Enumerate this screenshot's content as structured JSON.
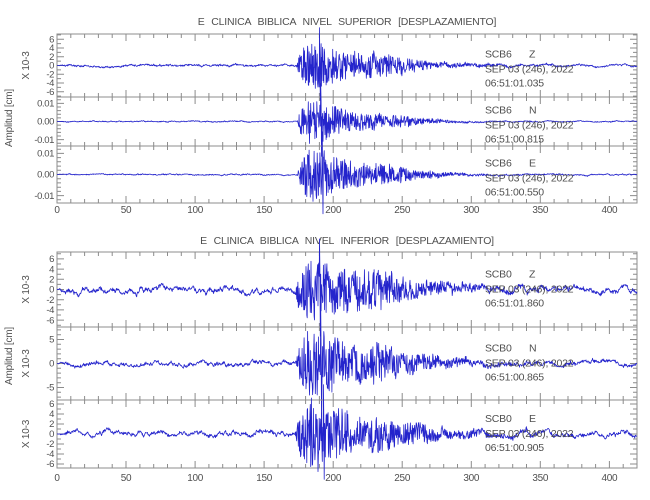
{
  "chart_data": [
    {
      "type": "line",
      "title": "E CLINICA BIBLICA NIVEL SUPERIOR [DESPLAZAMIENTO]",
      "ylabel": "Amplitud [cm]",
      "legend": "none",
      "grid": false,
      "x_axis": {
        "tick_labels": [
          "0",
          "50",
          "100",
          "150",
          "200",
          "250",
          "300",
          "350",
          "400"
        ],
        "tick_values": [
          0,
          50,
          100,
          150,
          200,
          250,
          300,
          350,
          400
        ],
        "minor_step": 10,
        "xlim": [
          0,
          420
        ]
      },
      "panels": [
        {
          "station": "SCB6",
          "component": "Z",
          "date_label": "SEP 03 (246), 2022",
          "time_label": "06:51:01.035",
          "y_unit_label": "X 10-3",
          "y_ticks": {
            "labels": [
              "6",
              "4",
              "2",
              "0",
              "-2",
              "-4",
              "-6"
            ],
            "values": [
              6,
              4,
              2,
              0,
              -2,
              -4,
              -6
            ],
            "minor_step": 1,
            "ylim": [
              -7.2,
              7.2
            ]
          },
          "signal": {
            "seed": 11,
            "wander": 0.05,
            "jitter": 0.018,
            "event_onset": 173,
            "event_peak_time": 190,
            "rise": 7,
            "decay": 38,
            "peak": 1.2,
            "echo": 0.22
          }
        },
        {
          "station": "SCB6",
          "component": "N",
          "date_label": "SEP 03 (246), 2022",
          "time_label": "06:51:00.815",
          "y_unit_label": "",
          "y_ticks": {
            "labels": [
              "0.01",
              "0.00",
              "-0.01"
            ],
            "values": [
              0.01,
              0,
              -0.01
            ],
            "minor_step": 0.002,
            "ylim": [
              -0.0135,
              0.0135
            ]
          },
          "signal": {
            "seed": 27,
            "wander": 0.035,
            "jitter": 0.012,
            "event_onset": 174,
            "event_peak_time": 191,
            "rise": 6,
            "decay": 30,
            "peak": 1.55,
            "echo": 0.25
          }
        },
        {
          "station": "SCB6",
          "component": "E",
          "date_label": "SEP 03 (246), 2022",
          "time_label": "06:51:00.550",
          "y_unit_label": "",
          "y_ticks": {
            "labels": [
              "0.01",
              "0.00",
              "-0.01"
            ],
            "values": [
              0.01,
              0,
              -0.01
            ],
            "minor_step": 0.002,
            "ylim": [
              -0.0135,
              0.0135
            ]
          },
          "signal": {
            "seed": 39,
            "wander": 0.035,
            "jitter": 0.012,
            "event_onset": 174,
            "event_peak_time": 192,
            "rise": 6,
            "decay": 33,
            "peak": 1.5,
            "echo": 0.2
          }
        }
      ]
    },
    {
      "type": "line",
      "title": "E CLINICA BIBLICA NIVEL INFERIOR [DESPLAZAMIENTO]",
      "ylabel": "Amplitud [cm]",
      "legend": "none",
      "grid": false,
      "x_axis": {
        "tick_labels": [
          "0",
          "50",
          "100",
          "150",
          "200",
          "250",
          "300",
          "350",
          "400"
        ],
        "tick_values": [
          0,
          50,
          100,
          150,
          200,
          250,
          300,
          350,
          400
        ],
        "minor_step": 10,
        "xlim": [
          0,
          420
        ]
      },
      "panels": [
        {
          "station": "SCB0",
          "component": "Z",
          "date_label": "SEP 03 (246), 2022",
          "time_label": "06:51:01.860",
          "y_unit_label": "X 10-3",
          "y_ticks": {
            "labels": [
              "6",
              "4",
              "2",
              "0",
              "-2",
              "-4",
              "-6"
            ],
            "values": [
              6,
              4,
              2,
              0,
              -2,
              -4,
              -6
            ],
            "minor_step": 1,
            "ylim": [
              -7.35,
              7.35
            ]
          },
          "signal": {
            "seed": 52,
            "wander": 0.13,
            "jitter": 0.03,
            "event_onset": 172,
            "event_peak_time": 190,
            "rise": 7,
            "decay": 45,
            "peak": 1.35,
            "echo": 0.3
          }
        },
        {
          "station": "SCB0",
          "component": "N",
          "date_label": "SEP 03 (246), 2022",
          "time_label": "06:51:00.865",
          "y_unit_label": "X 10-3",
          "y_ticks": {
            "labels": [
              "5",
              "0",
              "-5"
            ],
            "values": [
              5,
              0,
              -5
            ],
            "minor_step": 1,
            "ylim": [
              -7.6,
              7.6
            ]
          },
          "signal": {
            "seed": 63,
            "wander": 0.1,
            "jitter": 0.025,
            "event_onset": 173,
            "event_peak_time": 191,
            "rise": 8,
            "decay": 40,
            "peak": 1.6,
            "echo": 0.35
          }
        },
        {
          "station": "SCB0",
          "component": "E",
          "date_label": "SEP 03 (246), 2022",
          "time_label": "06:51:00.905",
          "y_unit_label": "X 10-3",
          "y_ticks": {
            "labels": [
              "6",
              "4",
              "2",
              "0",
              "-2",
              "-4",
              "-6"
            ],
            "values": [
              6,
              4,
              2,
              0,
              -2,
              -4,
              -6
            ],
            "minor_step": 1,
            "ylim": [
              -6.8,
              6.8
            ]
          },
          "signal": {
            "seed": 74,
            "wander": 0.12,
            "jitter": 0.028,
            "event_onset": 172,
            "event_peak_time": 193,
            "rise": 7,
            "decay": 46,
            "peak": 1.45,
            "echo": 0.3
          }
        }
      ]
    }
  ]
}
